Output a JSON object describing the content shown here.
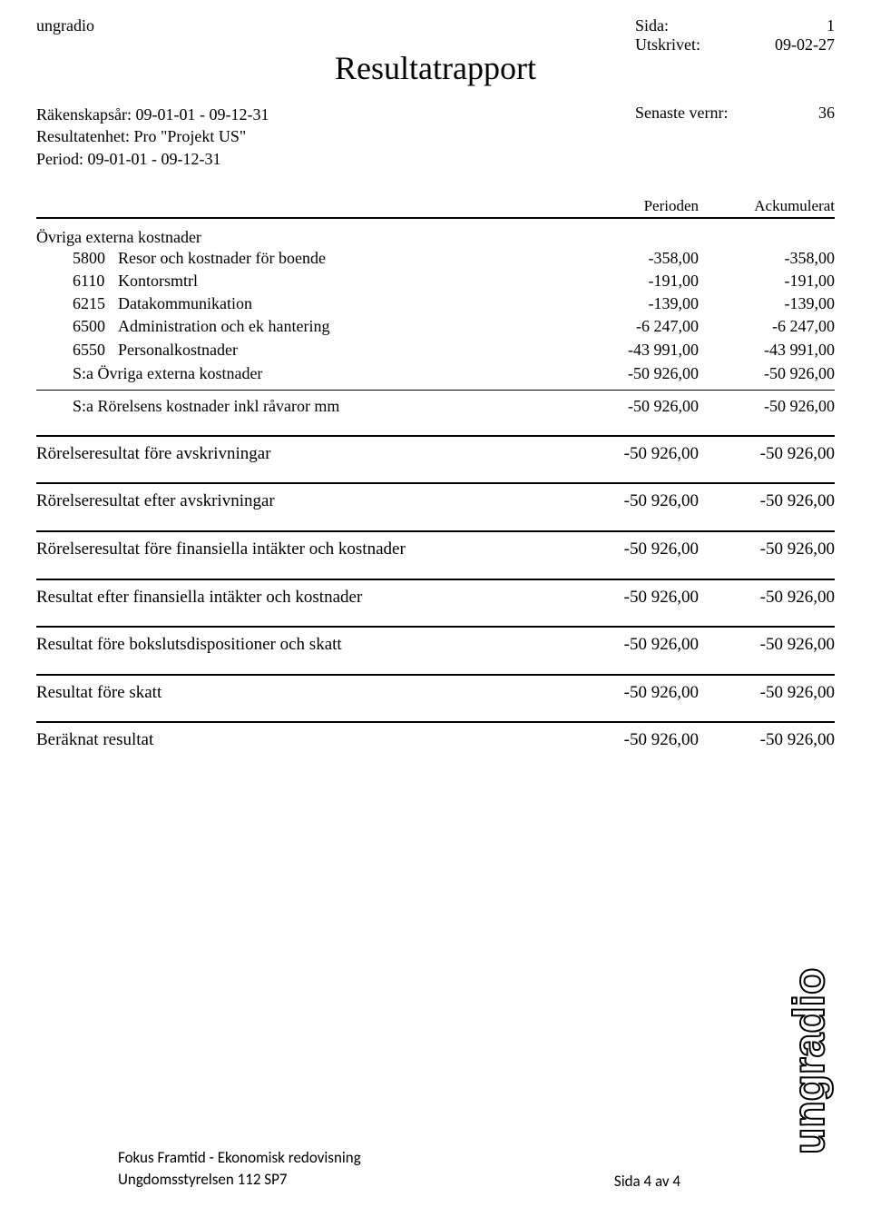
{
  "header": {
    "doc_id": "ungradio",
    "title": "Resultatrapport",
    "page_label": "Sida:",
    "page_value": "1",
    "printed_label": "Utskrivet:",
    "printed_value": "09-02-27"
  },
  "meta": {
    "fiscal_year": "Räkenskapsår: 09-01-01 - 09-12-31",
    "result_unit": "Resultatenhet: Pro \"Projekt US\"",
    "period": "Period: 09-01-01 - 09-12-31",
    "latest_no_label": "Senaste vernr:",
    "latest_no_value": "36"
  },
  "columns": {
    "period": "Perioden",
    "accum": "Ackumulerat"
  },
  "section_header": "Övriga externa kostnader",
  "accounts": [
    {
      "no": "5800",
      "desc": "Resor och kostnader för boende",
      "p": "-358,00",
      "a": "-358,00"
    },
    {
      "no": "6110",
      "desc": "Kontorsmtrl",
      "p": "-191,00",
      "a": "-191,00"
    },
    {
      "no": "6215",
      "desc": "Datakommunikation",
      "p": "-139,00",
      "a": "-139,00"
    },
    {
      "no": "6500",
      "desc": "Administration och ek hantering",
      "p": "-6 247,00",
      "a": "-6 247,00"
    },
    {
      "no": "6550",
      "desc": "Personalkostnader",
      "p": "-43 991,00",
      "a": "-43 991,00"
    }
  ],
  "sums": {
    "sa_externa": {
      "label": "S:a Övriga externa kostnader",
      "p": "-50 926,00",
      "a": "-50 926,00"
    },
    "sa_rorelse": {
      "label": "S:a Rörelsens kostnader inkl råvaror mm",
      "p": "-50 926,00",
      "a": "-50 926,00"
    }
  },
  "results": [
    {
      "label": "Rörelseresultat före avskrivningar",
      "p": "-50 926,00",
      "a": "-50 926,00"
    },
    {
      "label": "Rörelseresultat efter avskrivningar",
      "p": "-50 926,00",
      "a": "-50 926,00"
    },
    {
      "label": "Rörelseresultat före finansiella intäkter och kostnader",
      "p": "-50 926,00",
      "a": "-50 926,00"
    },
    {
      "label": "Resultat efter finansiella intäkter och kostnader",
      "p": "-50 926,00",
      "a": "-50 926,00"
    },
    {
      "label": "Resultat före bokslutsdispositioner och skatt",
      "p": "-50 926,00",
      "a": "-50 926,00"
    },
    {
      "label": "Resultat före skatt",
      "p": "-50 926,00",
      "a": "-50 926,00"
    },
    {
      "label": "Beräknat resultat",
      "p": "-50 926,00",
      "a": "-50 926,00"
    }
  ],
  "footer": {
    "line1": "Fokus Framtid - Ekonomisk redovisning",
    "line2": "Ungdomsstyrelsen 112 SP7",
    "page": "Sida 4 av 4"
  },
  "colors": {
    "text": "#000000",
    "bg": "#ffffff"
  }
}
